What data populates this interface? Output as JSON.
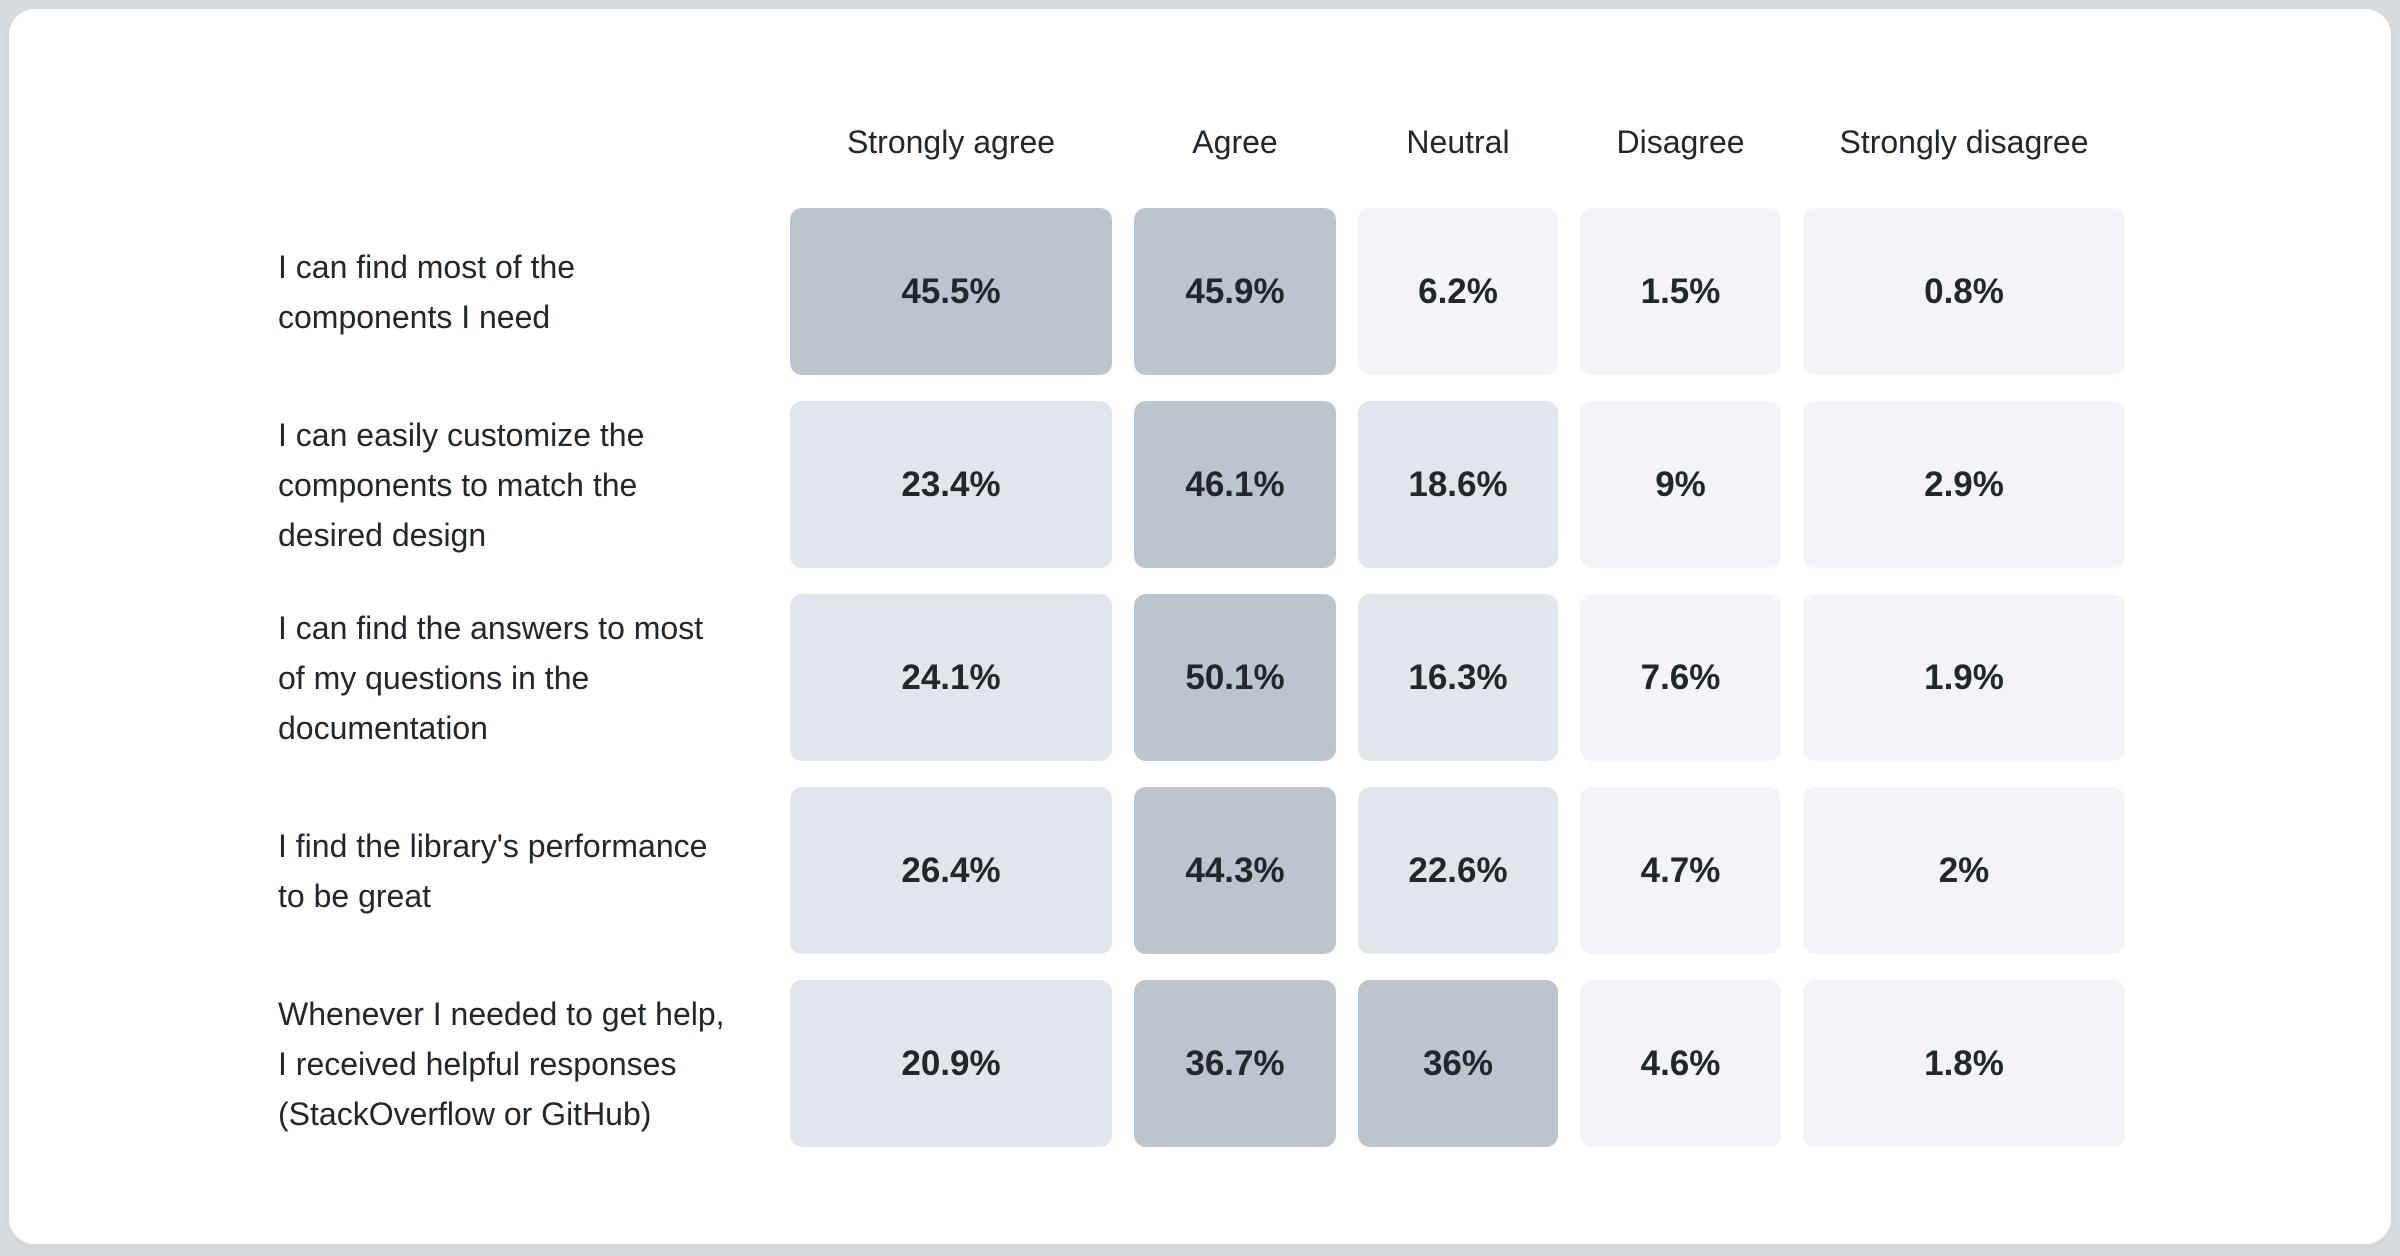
{
  "colors": {
    "page_background": "#d9dcdf",
    "card_background": "#ffffff",
    "card_border": "#d7dadd",
    "cell_shade_high": "#bcc4ce",
    "cell_shade_mid": "#e2e5eb",
    "cell_shade_low": "#f2f4f8",
    "text": "#21272a"
  },
  "chart_data": {
    "type": "heatmap",
    "title": "",
    "value_unit": "%",
    "legend": "none",
    "grid": "off",
    "shade_levels": {
      "high": ">=30%",
      "mid": "10-30%",
      "low": "<10%"
    },
    "columns": [
      "Strongly agree",
      "Agree",
      "Neutral",
      "Disagree",
      "Strongly disagree"
    ],
    "rows": [
      {
        "label": "I can find most of the components I need",
        "label_lines": [
          "I can find most of the",
          "components I need"
        ],
        "values": [
          45.5,
          45.9,
          6.2,
          1.5,
          0.8
        ],
        "cells": [
          {
            "display": "45.5%",
            "level": "high"
          },
          {
            "display": "45.9%",
            "level": "high"
          },
          {
            "display": "6.2%",
            "level": "low"
          },
          {
            "display": "1.5%",
            "level": "low"
          },
          {
            "display": "0.8%",
            "level": "low"
          }
        ]
      },
      {
        "label": "I can easily customize the components to match the desired design",
        "label_lines": [
          "I can easily customize the",
          "components to match the",
          "desired design"
        ],
        "values": [
          23.4,
          46.1,
          18.6,
          9,
          2.9
        ],
        "cells": [
          {
            "display": "23.4%",
            "level": "mid"
          },
          {
            "display": "46.1%",
            "level": "high"
          },
          {
            "display": "18.6%",
            "level": "mid"
          },
          {
            "display": "9%",
            "level": "low"
          },
          {
            "display": "2.9%",
            "level": "low"
          }
        ]
      },
      {
        "label": "I can find the answers to most of my questions in the documentation",
        "label_lines": [
          "I can find the answers to most",
          "of my questions in the",
          "documentation"
        ],
        "values": [
          24.1,
          50.1,
          16.3,
          7.6,
          1.9
        ],
        "cells": [
          {
            "display": "24.1%",
            "level": "mid"
          },
          {
            "display": "50.1%",
            "level": "high"
          },
          {
            "display": "16.3%",
            "level": "mid"
          },
          {
            "display": "7.6%",
            "level": "low"
          },
          {
            "display": "1.9%",
            "level": "low"
          }
        ]
      },
      {
        "label": "I find the library's performance to be great",
        "label_lines": [
          "I find the library's performance",
          "to be great"
        ],
        "values": [
          26.4,
          44.3,
          22.6,
          4.7,
          2
        ],
        "cells": [
          {
            "display": "26.4%",
            "level": "mid"
          },
          {
            "display": "44.3%",
            "level": "high"
          },
          {
            "display": "22.6%",
            "level": "mid"
          },
          {
            "display": "4.7%",
            "level": "low"
          },
          {
            "display": "2%",
            "level": "low"
          }
        ]
      },
      {
        "label": "Whenever I needed to get help, I received helpful responses (StackOverflow or GitHub)",
        "label_lines": [
          "Whenever I needed to get help,",
          "I received helpful responses",
          "(StackOverflow or GitHub)"
        ],
        "values": [
          20.9,
          36.7,
          36,
          4.6,
          1.8
        ],
        "cells": [
          {
            "display": "20.9%",
            "level": "mid"
          },
          {
            "display": "36.7%",
            "level": "high"
          },
          {
            "display": "36%",
            "level": "high"
          },
          {
            "display": "4.6%",
            "level": "low"
          },
          {
            "display": "1.8%",
            "level": "low"
          }
        ]
      }
    ]
  }
}
